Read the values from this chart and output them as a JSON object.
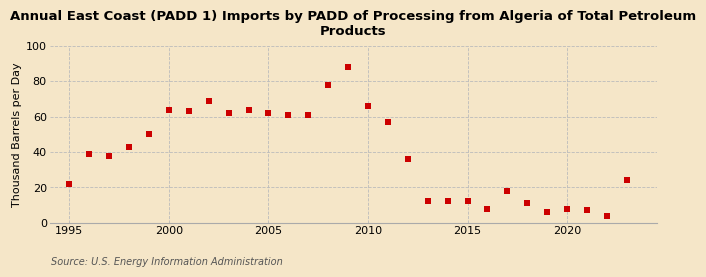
{
  "title": "Annual East Coast (PADD 1) Imports by PADD of Processing from Algeria of Total Petroleum\nProducts",
  "ylabel": "Thousand Barrels per Day",
  "source": "Source: U.S. Energy Information Administration",
  "years": [
    1995,
    1996,
    1997,
    1998,
    1999,
    2000,
    2001,
    2002,
    2003,
    2004,
    2005,
    2006,
    2007,
    2008,
    2009,
    2010,
    2011,
    2012,
    2013,
    2014,
    2015,
    2016,
    2017,
    2018,
    2019,
    2020,
    2021,
    2022,
    2023
  ],
  "values": [
    22,
    39,
    38,
    43,
    50,
    64,
    63,
    69,
    62,
    64,
    62,
    61,
    61,
    78,
    88,
    66,
    57,
    36,
    12,
    12,
    12,
    8,
    18,
    11,
    6,
    8,
    7,
    4,
    24
  ],
  "marker_color": "#cc0000",
  "background_color": "#f5e6c8",
  "plot_bg_color": "#f5e6c8",
  "grid_color": "#bbbbbb",
  "spine_color": "#aaaaaa",
  "title_color": "#000000",
  "source_color": "#555555",
  "xlim": [
    1994.0,
    2024.5
  ],
  "ylim": [
    0,
    100
  ],
  "yticks": [
    0,
    20,
    40,
    60,
    80,
    100
  ],
  "xticks": [
    1995,
    2000,
    2005,
    2010,
    2015,
    2020
  ],
  "title_fontsize": 9.5,
  "axis_fontsize": 8,
  "source_fontsize": 7
}
